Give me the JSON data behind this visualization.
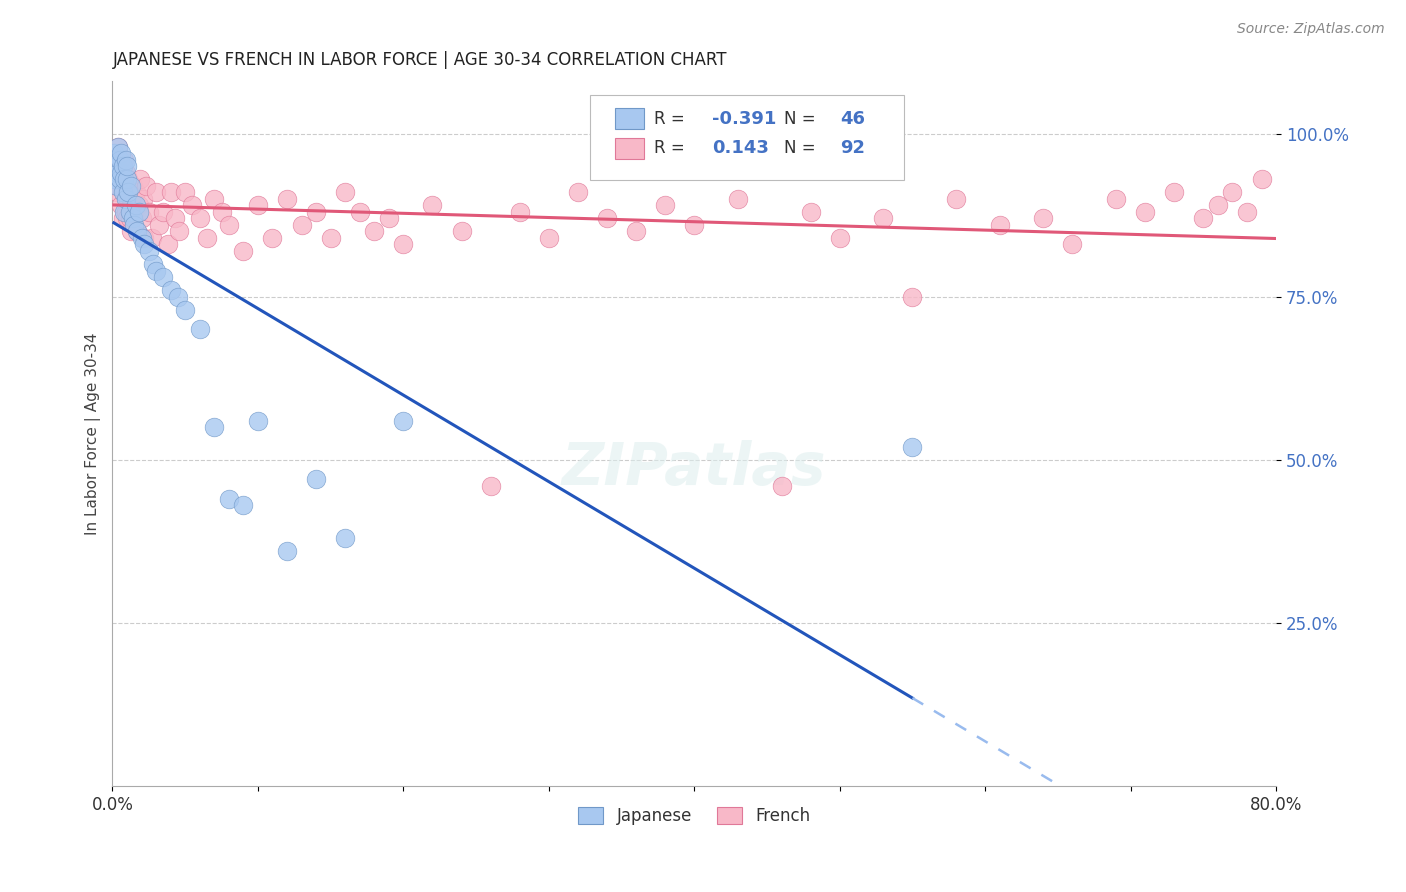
{
  "title": "JAPANESE VS FRENCH IN LABOR FORCE | AGE 30-34 CORRELATION CHART",
  "source": "Source: ZipAtlas.com",
  "ylabel": "In Labor Force | Age 30-34",
  "xlim": [
    0.0,
    0.8
  ],
  "ylim": [
    0.0,
    1.08
  ],
  "background_color": "#ffffff",
  "grid_color": "#cccccc",
  "japanese_color": "#a8c8f0",
  "french_color": "#f8b8c8",
  "japanese_edge": "#7098c8",
  "french_edge": "#e07898",
  "trend_japanese_color": "#2255bb",
  "trend_french_color": "#e05878",
  "dash_japanese_color": "#99bbee",
  "legend_R_japanese": "-0.391",
  "legend_N_japanese": "46",
  "legend_R_french": "0.143",
  "legend_N_french": "92",
  "ytick_vals": [
    0.25,
    0.5,
    0.75,
    1.0
  ],
  "ytick_labels": [
    "25.0%",
    "50.0%",
    "75.0%",
    "100.0%"
  ],
  "japanese_x": [
    0.001,
    0.002,
    0.002,
    0.003,
    0.003,
    0.004,
    0.004,
    0.005,
    0.005,
    0.006,
    0.006,
    0.007,
    0.007,
    0.008,
    0.008,
    0.009,
    0.009,
    0.01,
    0.01,
    0.011,
    0.012,
    0.013,
    0.014,
    0.015,
    0.016,
    0.017,
    0.018,
    0.02,
    0.022,
    0.025,
    0.028,
    0.03,
    0.035,
    0.04,
    0.045,
    0.05,
    0.06,
    0.07,
    0.08,
    0.09,
    0.1,
    0.12,
    0.14,
    0.16,
    0.2,
    0.55
  ],
  "japanese_y": [
    0.97,
    0.96,
    0.93,
    0.95,
    0.92,
    0.94,
    0.98,
    0.93,
    0.96,
    0.94,
    0.97,
    0.91,
    0.95,
    0.88,
    0.93,
    0.96,
    0.9,
    0.93,
    0.95,
    0.91,
    0.88,
    0.92,
    0.87,
    0.86,
    0.89,
    0.85,
    0.88,
    0.84,
    0.83,
    0.82,
    0.8,
    0.79,
    0.78,
    0.76,
    0.75,
    0.73,
    0.7,
    0.55,
    0.44,
    0.43,
    0.56,
    0.36,
    0.47,
    0.38,
    0.56,
    0.52
  ],
  "french_x": [
    0.001,
    0.001,
    0.002,
    0.002,
    0.003,
    0.003,
    0.004,
    0.004,
    0.005,
    0.005,
    0.006,
    0.006,
    0.007,
    0.007,
    0.008,
    0.008,
    0.009,
    0.009,
    0.01,
    0.01,
    0.011,
    0.011,
    0.012,
    0.012,
    0.013,
    0.013,
    0.014,
    0.015,
    0.016,
    0.017,
    0.018,
    0.019,
    0.02,
    0.021,
    0.022,
    0.023,
    0.025,
    0.027,
    0.03,
    0.032,
    0.035,
    0.038,
    0.04,
    0.043,
    0.046,
    0.05,
    0.055,
    0.06,
    0.065,
    0.07,
    0.075,
    0.08,
    0.09,
    0.1,
    0.11,
    0.12,
    0.13,
    0.14,
    0.15,
    0.16,
    0.17,
    0.18,
    0.19,
    0.2,
    0.22,
    0.24,
    0.26,
    0.28,
    0.3,
    0.32,
    0.34,
    0.36,
    0.38,
    0.4,
    0.43,
    0.46,
    0.48,
    0.5,
    0.53,
    0.55,
    0.58,
    0.61,
    0.64,
    0.66,
    0.69,
    0.71,
    0.73,
    0.75,
    0.76,
    0.77,
    0.78,
    0.79
  ],
  "french_y": [
    0.93,
    0.97,
    0.94,
    0.96,
    0.91,
    0.95,
    0.92,
    0.98,
    0.93,
    0.96,
    0.89,
    0.95,
    0.93,
    0.87,
    0.91,
    0.96,
    0.88,
    0.94,
    0.91,
    0.87,
    0.9,
    0.93,
    0.87,
    0.92,
    0.89,
    0.85,
    0.92,
    0.88,
    0.91,
    0.85,
    0.89,
    0.93,
    0.87,
    0.9,
    0.84,
    0.92,
    0.88,
    0.84,
    0.91,
    0.86,
    0.88,
    0.83,
    0.91,
    0.87,
    0.85,
    0.91,
    0.89,
    0.87,
    0.84,
    0.9,
    0.88,
    0.86,
    0.82,
    0.89,
    0.84,
    0.9,
    0.86,
    0.88,
    0.84,
    0.91,
    0.88,
    0.85,
    0.87,
    0.83,
    0.89,
    0.85,
    0.46,
    0.88,
    0.84,
    0.91,
    0.87,
    0.85,
    0.89,
    0.86,
    0.9,
    0.46,
    0.88,
    0.84,
    0.87,
    0.75,
    0.9,
    0.86,
    0.87,
    0.83,
    0.9,
    0.88,
    0.91,
    0.87,
    0.89,
    0.91,
    0.88,
    0.93
  ]
}
